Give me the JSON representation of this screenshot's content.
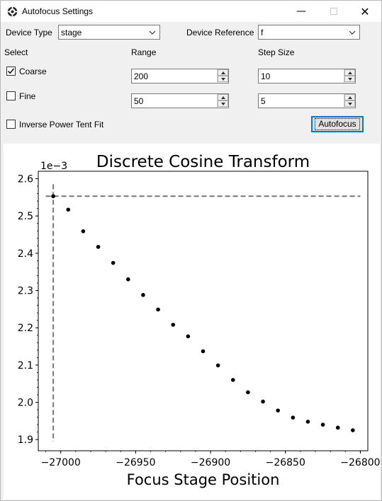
{
  "window": {
    "title": "Autofocus Settings",
    "app_icon": "settings-gear-icon"
  },
  "window_controls": {
    "minimize_icon": "minimize-icon",
    "maximize_icon": "maximize-icon",
    "close_icon": "close-icon",
    "minimize_glyph": "—",
    "close_glyph": "✕"
  },
  "device": {
    "type_label": "Device Type",
    "type_value": "stage",
    "reference_label": "Device Reference",
    "reference_value": "f"
  },
  "columns": {
    "select": "Select",
    "range": "Range",
    "step": "Step Size"
  },
  "coarse": {
    "label": "Coarse",
    "checked": true,
    "range": "200",
    "step": "10"
  },
  "fine": {
    "label": "Fine",
    "checked": false,
    "range": "50",
    "step": "5"
  },
  "inverse_fit": {
    "label": "Inverse Power Tent Fit",
    "checked": false
  },
  "autofocus_button": {
    "label": "Autofocus"
  },
  "chart_data": {
    "type": "scatter",
    "title": "Discrete Cosine Transform",
    "xlabel": "Focus Stage Position",
    "ylabel": "",
    "y_offset_label": "1e−3",
    "xlim": [
      -27015,
      -26795
    ],
    "ylim": [
      1.87,
      2.62
    ],
    "x_ticks": [
      -27000,
      -26950,
      -26900,
      -26850,
      -26800
    ],
    "x_tick_labels": [
      "−27000",
      "−26950",
      "−26900",
      "−26850",
      "−26800"
    ],
    "y_ticks": [
      1.9,
      2.0,
      2.1,
      2.2,
      2.3,
      2.4,
      2.5,
      2.6
    ],
    "y_tick_labels": [
      "1.9",
      "2.0",
      "2.1",
      "2.2",
      "2.3",
      "2.4",
      "2.5",
      "2.6"
    ],
    "grid": false,
    "points": {
      "x": [
        -27005,
        -26995,
        -26985,
        -26975,
        -26965,
        -26955,
        -26945,
        -26935,
        -26925,
        -26915,
        -26905,
        -26895,
        -26885,
        -26875,
        -26865,
        -26855,
        -26845,
        -26835,
        -26825,
        -26815,
        -26805
      ],
      "y": [
        2.553,
        2.517,
        2.459,
        2.417,
        2.374,
        2.33,
        2.288,
        2.249,
        2.208,
        2.177,
        2.137,
        2.099,
        2.06,
        2.027,
        2.002,
        1.978,
        1.959,
        1.948,
        1.94,
        1.932,
        1.925
      ]
    },
    "best_focus": {
      "x": -27005,
      "y": 2.553
    }
  }
}
